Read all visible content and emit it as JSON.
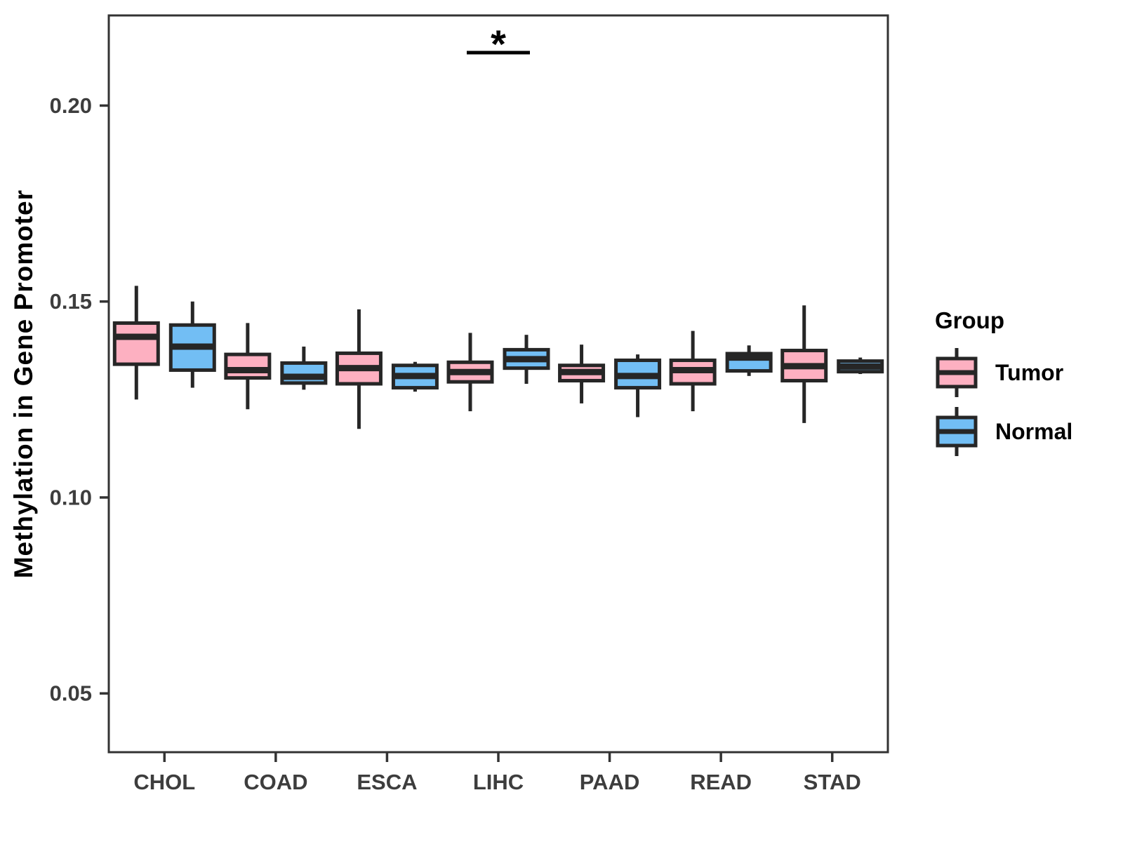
{
  "chart_data": {
    "type": "boxplot",
    "title": "",
    "xlabel": "",
    "ylabel": "Methylation in Gene Promoter",
    "categories": [
      "CHOL",
      "COAD",
      "ESCA",
      "LIHC",
      "PAAD",
      "READ",
      "STAD"
    ],
    "y_ticks": [
      "0.05",
      "0.10",
      "0.15",
      "0.20"
    ],
    "y_tick_values": [
      0.05,
      0.1,
      0.15,
      0.2
    ],
    "ylim": [
      0.035,
      0.223
    ],
    "grid": false,
    "legend": {
      "title": "Group",
      "position": "right",
      "items": [
        {
          "label": "Tumor",
          "color": "#FDB0C1"
        },
        {
          "label": "Normal",
          "color": "#72BEF4"
        }
      ]
    },
    "series": [
      {
        "name": "Tumor",
        "color": "#FDB0C1",
        "boxes": [
          {
            "category": "CHOL",
            "whisker_low": 0.125,
            "q1": 0.134,
            "median": 0.141,
            "q3": 0.1445,
            "whisker_high": 0.154
          },
          {
            "category": "COAD",
            "whisker_low": 0.1225,
            "q1": 0.1305,
            "median": 0.1325,
            "q3": 0.1365,
            "whisker_high": 0.1445
          },
          {
            "category": "ESCA",
            "whisker_low": 0.1175,
            "q1": 0.129,
            "median": 0.133,
            "q3": 0.1368,
            "whisker_high": 0.148
          },
          {
            "category": "LIHC",
            "whisker_low": 0.122,
            "q1": 0.1295,
            "median": 0.132,
            "q3": 0.1345,
            "whisker_high": 0.142
          },
          {
            "category": "PAAD",
            "whisker_low": 0.124,
            "q1": 0.1298,
            "median": 0.132,
            "q3": 0.1337,
            "whisker_high": 0.139
          },
          {
            "category": "READ",
            "whisker_low": 0.122,
            "q1": 0.129,
            "median": 0.1325,
            "q3": 0.135,
            "whisker_high": 0.1425
          },
          {
            "category": "STAD",
            "whisker_low": 0.119,
            "q1": 0.1298,
            "median": 0.1335,
            "q3": 0.1375,
            "whisker_high": 0.149
          }
        ]
      },
      {
        "name": "Normal",
        "color": "#72BEF4",
        "boxes": [
          {
            "category": "CHOL",
            "whisker_low": 0.128,
            "q1": 0.1325,
            "median": 0.1385,
            "q3": 0.144,
            "whisker_high": 0.15
          },
          {
            "category": "COAD",
            "whisker_low": 0.1275,
            "q1": 0.1292,
            "median": 0.1308,
            "q3": 0.1343,
            "whisker_high": 0.1385
          },
          {
            "category": "ESCA",
            "whisker_low": 0.127,
            "q1": 0.128,
            "median": 0.131,
            "q3": 0.1337,
            "whisker_high": 0.1346
          },
          {
            "category": "LIHC",
            "whisker_low": 0.129,
            "q1": 0.133,
            "median": 0.1353,
            "q3": 0.1377,
            "whisker_high": 0.1415
          },
          {
            "category": "PAAD",
            "whisker_low": 0.1205,
            "q1": 0.128,
            "median": 0.131,
            "q3": 0.135,
            "whisker_high": 0.1365
          },
          {
            "category": "READ",
            "whisker_low": 0.131,
            "q1": 0.1323,
            "median": 0.1357,
            "q3": 0.1367,
            "whisker_high": 0.1388
          },
          {
            "category": "STAD",
            "whisker_low": 0.1315,
            "q1": 0.1321,
            "median": 0.1334,
            "q3": 0.1348,
            "whisker_high": 0.1357
          }
        ]
      }
    ],
    "annotations": [
      {
        "category": "LIHC",
        "label": "*",
        "y_value": 0.2135
      }
    ],
    "style": {
      "box_border": "#262626",
      "median_color": "#262626",
      "panel_border": "#333333",
      "tick_color": "#333333",
      "tick_label_color": "#3d3d3d",
      "axis_label_color": "#3d3d3d",
      "annotation_color": "#000000",
      "background": "#ffffff"
    }
  }
}
